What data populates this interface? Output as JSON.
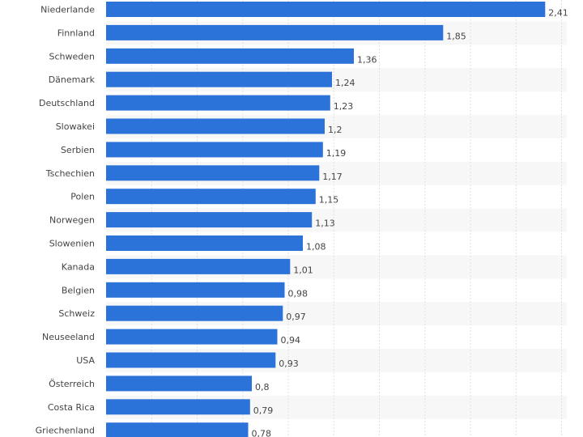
{
  "chart_data": {
    "type": "bar",
    "orientation": "horizontal",
    "categories": [
      "Niederlande",
      "Finnland",
      "Schweden",
      "Dänemark",
      "Deutschland",
      "Slowakei",
      "Serbien",
      "Tschechien",
      "Polen",
      "Norwegen",
      "Slowenien",
      "Kanada",
      "Belgien",
      "Schweiz",
      "Neuseeland",
      "USA",
      "Österreich",
      "Costa Rica",
      "Griechenland"
    ],
    "values": [
      2.41,
      1.85,
      1.36,
      1.24,
      1.23,
      1.2,
      1.19,
      1.17,
      1.15,
      1.13,
      1.08,
      1.01,
      0.98,
      0.97,
      0.94,
      0.93,
      0.8,
      0.79,
      0.78
    ],
    "value_labels": [
      "2,41",
      "1,85",
      "1,36",
      "1,24",
      "1,23",
      "1,2",
      "1,19",
      "1,17",
      "1,15",
      "1,13",
      "1,08",
      "1,01",
      "0,98",
      "0,97",
      "0,94",
      "0,93",
      "0,8",
      "0,79",
      "0,78"
    ],
    "title": "",
    "xlabel": "",
    "ylabel": "",
    "xlim": [
      0,
      2.5
    ],
    "grid": true,
    "bar_color": "#2b73d9",
    "stripe_color": "#f7f7f7",
    "grid_color": "#e0e0e0"
  }
}
